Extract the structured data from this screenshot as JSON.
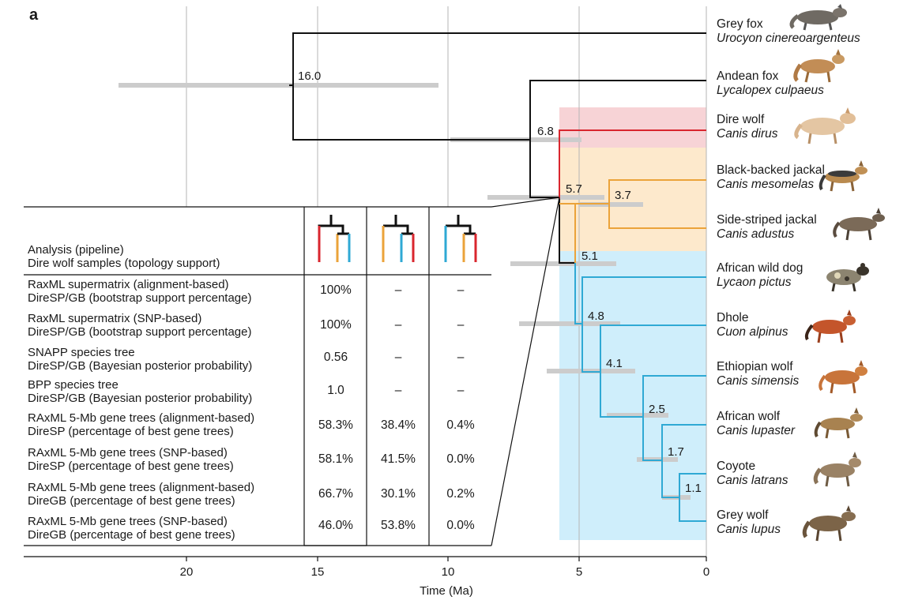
{
  "panel_label": "a",
  "axis": {
    "title": "Time (Ma)",
    "ticks": [
      "20",
      "15",
      "10",
      "5",
      "0"
    ]
  },
  "node_ages": [
    "16.0",
    "6.8",
    "5.7",
    "3.7",
    "5.1",
    "4.8",
    "4.1",
    "2.5",
    "1.7",
    "1.1"
  ],
  "taxa": [
    {
      "common": "Grey fox",
      "scientific": "Urocyon cinereoargenteus"
    },
    {
      "common": "Andean fox",
      "scientific": "Lycalopex culpaeus"
    },
    {
      "common": "Dire wolf",
      "scientific": "Canis dirus"
    },
    {
      "common": "Black-backed jackal",
      "scientific": "Canis mesomelas"
    },
    {
      "common": "Side-striped jackal",
      "scientific": "Canis adustus"
    },
    {
      "common": "African wild dog",
      "scientific": "Lycaon pictus"
    },
    {
      "common": "Dhole",
      "scientific": "Cuon alpinus"
    },
    {
      "common": "Ethiopian wolf",
      "scientific": "Canis simensis"
    },
    {
      "common": "African wolf",
      "scientific": "Canis lupaster"
    },
    {
      "common": "Coyote",
      "scientific": "Canis latrans"
    },
    {
      "common": "Grey wolf",
      "scientific": "Canis lupus"
    }
  ],
  "table": {
    "header": [
      "Analysis (pipeline)",
      "Dire wolf samples (topology support)"
    ],
    "rows": [
      {
        "line1": "RaxML supermatrix (alignment-based)",
        "line2": "DireSP/GB (bootstrap support percentage)",
        "values": [
          "100%",
          "–",
          "–"
        ]
      },
      {
        "line1": "RaxML supermatrix (SNP-based)",
        "line2": "DireSP/GB (bootstrap support percentage)",
        "values": [
          "100%",
          "–",
          "–"
        ]
      },
      {
        "line1": "SNAPP species tree",
        "line2": "DireSP/GB (Bayesian posterior probability)",
        "values": [
          "0.56",
          "–",
          "–"
        ]
      },
      {
        "line1": "BPP species tree",
        "line2": "DireSP/GB (Bayesian posterior probability)",
        "values": [
          "1.0",
          "–",
          "–"
        ]
      },
      {
        "line1": "RAxML 5-Mb gene trees (alignment-based)",
        "line2": "DireSP (percentage of best gene trees)",
        "values": [
          "58.3%",
          "38.4%",
          "0.4%"
        ]
      },
      {
        "line1": "RAxML 5-Mb gene trees (SNP-based)",
        "line2": "DireSP (percentage of best gene trees)",
        "values": [
          "58.1%",
          "41.5%",
          "0.0%"
        ]
      },
      {
        "line1": "RAxML 5-Mb gene trees (alignment-based)",
        "line2": "DireGB (percentage of best gene trees)",
        "values": [
          "66.7%",
          "30.1%",
          "0.2%"
        ]
      },
      {
        "line1": "RAxML 5-Mb gene trees (SNP-based)",
        "line2": "DireGB (percentage of best gene trees)",
        "values": [
          "46.0%",
          "53.8%",
          "0.0%"
        ]
      }
    ]
  },
  "colors": {
    "dire": "#d9262e",
    "jackal": "#eba33a",
    "wolf": "#2fa9d4",
    "dire_bg": "#f7d3d6",
    "jackal_bg": "#fde9cc",
    "wolf_bg": "#cfeefb",
    "ci_bar": "#cccccc",
    "black": "#111111"
  }
}
